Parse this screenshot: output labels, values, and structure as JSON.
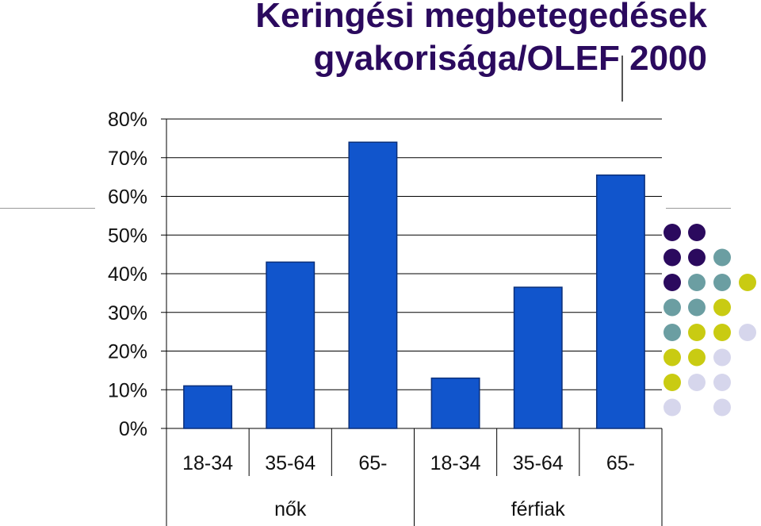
{
  "title": {
    "line1": "Keringési megbetegedések",
    "line2": "gyakorisága/OLEF 2000"
  },
  "colors": {
    "title": "#2b0a5e",
    "bar": "#1155cc",
    "bar_edge": "#0a2f7a",
    "dot_purple": "#2b0a5e",
    "dot_teal": "#6b9ea2",
    "dot_yellow": "#c9cb12",
    "dot_lavender": "#d6d6ec"
  },
  "chart_data": {
    "type": "bar",
    "ylim": [
      0,
      80
    ],
    "yticks": [
      "0%",
      "10%",
      "20%",
      "30%",
      "40%",
      "50%",
      "60%",
      "70%",
      "80%"
    ],
    "grid": true,
    "groups": [
      {
        "label": "nők",
        "categories": [
          "18-34",
          "35-64",
          "65-"
        ],
        "values": [
          11,
          43,
          74
        ]
      },
      {
        "label": "férfiak",
        "categories": [
          "18-34",
          "35-64",
          "65-"
        ],
        "values": [
          13,
          36.5,
          65.5
        ]
      }
    ]
  }
}
